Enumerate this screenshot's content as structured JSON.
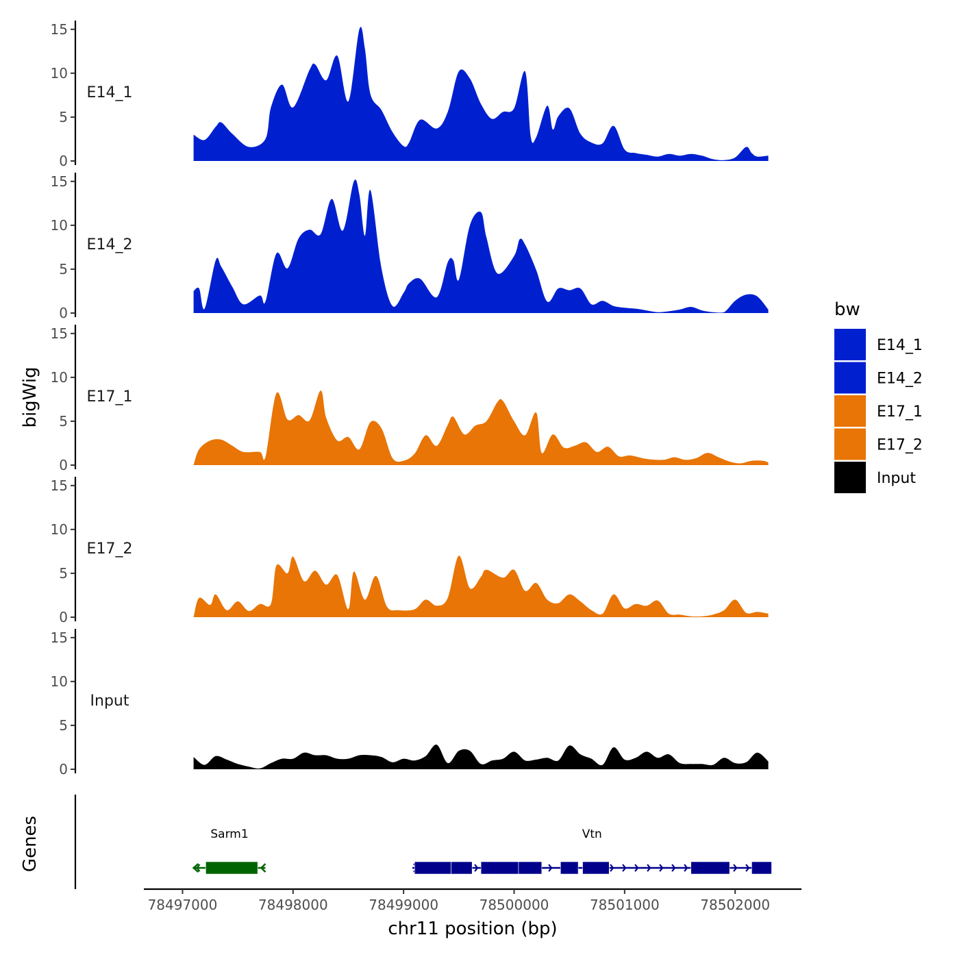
{
  "chart_data": {
    "type": "area",
    "x_axis": {
      "label": "chr11 position (bp)",
      "range": [
        78496650,
        78502600
      ],
      "ticks": [
        78497000,
        78498000,
        78499000,
        78500000,
        78501000,
        78502000
      ],
      "tick_labels": [
        "78497000",
        "78498000",
        "78499000",
        "78500000",
        "78501000",
        "78502000"
      ]
    },
    "y_axis": {
      "label": "bigWig",
      "range": [
        0,
        16
      ],
      "ticks": [
        0,
        5,
        10,
        15
      ],
      "tick_labels": [
        "0",
        "5",
        "10",
        "15"
      ]
    },
    "genes_label": "Genes",
    "colors": {
      "E14": "#0020D0",
      "E17": "#E87505",
      "Input": "#000000",
      "gene_minus": "#006400",
      "gene_plus": "#00008B"
    },
    "series": [
      {
        "name": "E14_1",
        "label": "E14_1",
        "color": "#0020D0",
        "x": [
          78497100,
          78497200,
          78497300,
          78497350,
          78497450,
          78497600,
          78497750,
          78497800,
          78497900,
          78498000,
          78498150,
          78498200,
          78498300,
          78498400,
          78498500,
          78498600,
          78498650,
          78498700,
          78498800,
          78498900,
          78499000,
          78499050,
          78499150,
          78499300,
          78499400,
          78499500,
          78499600,
          78499700,
          78499800,
          78499900,
          78500000,
          78500100,
          78500150,
          78500200,
          78500300,
          78500350,
          78500400,
          78500500,
          78500600,
          78500700,
          78500800,
          78500900,
          78501000,
          78501100,
          78501200,
          78501300,
          78501400,
          78501500,
          78501600,
          78501700,
          78501800,
          78501900,
          78502000,
          78502100,
          78502150,
          78502200,
          78502300
        ],
        "y": [
          3.0,
          2.4,
          3.9,
          4.4,
          3.1,
          1.6,
          2.5,
          6.1,
          8.7,
          6.1,
          10.4,
          11.0,
          9.2,
          12.0,
          6.8,
          15.0,
          12.8,
          7.6,
          5.8,
          3.3,
          1.7,
          2.1,
          4.7,
          3.7,
          5.6,
          10.2,
          9.4,
          6.5,
          4.8,
          5.6,
          6.0,
          10.2,
          2.8,
          2.7,
          6.3,
          3.6,
          5.1,
          6.0,
          3.1,
          2.1,
          2.0,
          4.0,
          1.3,
          0.9,
          0.7,
          0.5,
          0.8,
          0.6,
          0.8,
          0.6,
          0.2,
          0.1,
          0.4,
          1.6,
          0.9,
          0.5,
          0.6
        ]
      },
      {
        "name": "E14_2",
        "label": "E14_2",
        "color": "#0020D0",
        "x": [
          78497100,
          78497150,
          78497200,
          78497300,
          78497350,
          78497450,
          78497550,
          78497700,
          78497750,
          78497850,
          78497950,
          78498050,
          78498150,
          78498250,
          78498350,
          78498450,
          78498550,
          78498600,
          78498650,
          78498700,
          78498800,
          78498900,
          78499000,
          78499050,
          78499150,
          78499300,
          78499400,
          78499450,
          78499500,
          78499600,
          78499700,
          78499750,
          78499850,
          78500000,
          78500050,
          78500100,
          78500200,
          78500300,
          78500400,
          78500500,
          78500600,
          78500700,
          78500800,
          78500900,
          78501000,
          78501100,
          78501200,
          78501300,
          78501400,
          78501500,
          78501600,
          78501700,
          78501800,
          78501900,
          78502000,
          78502100,
          78502200,
          78502300
        ],
        "y": [
          2.5,
          2.8,
          0.5,
          6.0,
          5.3,
          3.0,
          1.0,
          2.0,
          1.3,
          6.8,
          5.1,
          8.5,
          9.5,
          9.0,
          13.0,
          9.4,
          15.0,
          13.5,
          8.8,
          14.0,
          5.1,
          0.8,
          2.3,
          3.4,
          3.9,
          1.8,
          5.8,
          6.0,
          3.8,
          10.0,
          11.5,
          8.6,
          4.5,
          6.5,
          8.4,
          7.8,
          4.9,
          1.3,
          2.8,
          2.6,
          2.8,
          1.0,
          1.4,
          0.8,
          0.6,
          0.5,
          0.3,
          0.1,
          0.2,
          0.4,
          0.7,
          0.3,
          0.1,
          0.1,
          1.4,
          2.1,
          1.9,
          0.4
        ]
      },
      {
        "name": "E17_1",
        "label": "E17_1",
        "color": "#E87505",
        "x": [
          78497100,
          78497150,
          78497250,
          78497350,
          78497450,
          78497550,
          78497700,
          78497750,
          78497850,
          78497950,
          78498050,
          78498150,
          78498250,
          78498300,
          78498400,
          78498500,
          78498600,
          78498700,
          78498800,
          78498900,
          78499000,
          78499100,
          78499200,
          78499300,
          78499400,
          78499450,
          78499550,
          78499650,
          78499750,
          78499850,
          78499900,
          78500000,
          78500100,
          78500200,
          78500250,
          78500350,
          78500450,
          78500550,
          78500650,
          78500750,
          78500850,
          78500950,
          78501050,
          78501200,
          78501350,
          78501450,
          78501550,
          78501650,
          78501750,
          78501850,
          78501950,
          78502050,
          78502150,
          78502250,
          78502300
        ],
        "y": [
          0.0,
          1.8,
          2.8,
          2.9,
          2.2,
          1.5,
          1.5,
          0.9,
          8.2,
          5.2,
          5.7,
          5.1,
          8.5,
          5.4,
          2.8,
          3.2,
          1.8,
          4.9,
          4.2,
          0.8,
          0.5,
          1.3,
          3.4,
          2.2,
          4.6,
          5.5,
          3.5,
          4.5,
          5.0,
          7.2,
          7.3,
          5.0,
          3.4,
          6.0,
          1.4,
          3.5,
          2.0,
          2.2,
          2.6,
          1.5,
          2.1,
          1.0,
          1.1,
          0.7,
          0.6,
          0.9,
          0.6,
          0.8,
          1.4,
          0.9,
          0.4,
          0.2,
          0.5,
          0.5,
          0.3
        ]
      },
      {
        "name": "E17_2",
        "label": "E17_2",
        "color": "#E87505",
        "x": [
          78497100,
          78497150,
          78497250,
          78497300,
          78497400,
          78497500,
          78497600,
          78497700,
          78497800,
          78497850,
          78497950,
          78498000,
          78498100,
          78498200,
          78498300,
          78498400,
          78498500,
          78498550,
          78498650,
          78498750,
          78498850,
          78498950,
          78499100,
          78499200,
          78499300,
          78499400,
          78499500,
          78499600,
          78499700,
          78499750,
          78499900,
          78500000,
          78500100,
          78500200,
          78500300,
          78500400,
          78500500,
          78500600,
          78500700,
          78500800,
          78500900,
          78501000,
          78501100,
          78501200,
          78501300,
          78501400,
          78501500,
          78501600,
          78501700,
          78501800,
          78501900,
          78502000,
          78502100,
          78502200,
          78502300
        ],
        "y": [
          0.0,
          2.2,
          1.4,
          2.6,
          0.8,
          1.8,
          0.7,
          1.5,
          1.5,
          5.9,
          5.0,
          6.9,
          4.1,
          5.3,
          3.7,
          4.8,
          0.9,
          5.2,
          2.0,
          4.7,
          1.2,
          0.8,
          0.9,
          2.0,
          1.3,
          2.2,
          7.0,
          3.3,
          4.6,
          5.4,
          4.5,
          5.4,
          3.0,
          3.9,
          2.0,
          1.6,
          2.6,
          1.8,
          0.8,
          0.4,
          2.6,
          1.0,
          1.5,
          1.3,
          1.9,
          0.4,
          0.3,
          0.1,
          0.1,
          0.3,
          0.8,
          2.0,
          0.5,
          0.6,
          0.4
        ]
      },
      {
        "name": "Input",
        "label": "Input",
        "color": "#000000",
        "x": [
          78497100,
          78497200,
          78497300,
          78497400,
          78497500,
          78497600,
          78497700,
          78497800,
          78497900,
          78498000,
          78498100,
          78498200,
          78498300,
          78498400,
          78498500,
          78498600,
          78498700,
          78498800,
          78498900,
          78499000,
          78499100,
          78499200,
          78499300,
          78499400,
          78499500,
          78499600,
          78499700,
          78499800,
          78499900,
          78500000,
          78500100,
          78500200,
          78500300,
          78500400,
          78500500,
          78500600,
          78500700,
          78500800,
          78500900,
          78501000,
          78501100,
          78501200,
          78501300,
          78501400,
          78501500,
          78501600,
          78501700,
          78501800,
          78501900,
          78502000,
          78502100,
          78502200,
          78502300
        ],
        "y": [
          1.4,
          0.5,
          1.5,
          1.1,
          0.6,
          0.3,
          0.1,
          0.7,
          1.2,
          1.2,
          1.9,
          1.6,
          1.6,
          1.2,
          1.2,
          1.6,
          1.6,
          1.4,
          0.8,
          1.2,
          1.0,
          1.5,
          2.8,
          0.7,
          2.1,
          2.1,
          0.6,
          1.0,
          1.2,
          2.0,
          1.0,
          1.1,
          1.3,
          1.0,
          2.7,
          1.7,
          1.2,
          0.5,
          2.5,
          1.1,
          1.3,
          2.0,
          1.3,
          1.7,
          0.7,
          0.6,
          0.6,
          0.5,
          1.3,
          0.7,
          0.8,
          1.9,
          0.9
        ]
      }
    ],
    "genes": [
      {
        "name": "Sarm1",
        "label": "Sarm1",
        "strand": "-",
        "color": "#006400",
        "start": 78497100,
        "end": 78497750,
        "blocks": [
          [
            78497210,
            78497680
          ]
        ]
      },
      {
        "name": "Vtn",
        "label": "Vtn",
        "strand": "+",
        "color": "#00008B",
        "start": 78499080,
        "end": 78502330,
        "blocks": [
          [
            78499100,
            78499430
          ],
          [
            78499430,
            78499620
          ],
          [
            78499700,
            78500040
          ],
          [
            78500040,
            78500250
          ],
          [
            78500420,
            78500580
          ],
          [
            78500620,
            78500860
          ],
          [
            78501600,
            78501950
          ],
          [
            78502150,
            78502330
          ]
        ]
      }
    ],
    "legend": {
      "title": "bw",
      "position": "right",
      "entries": [
        {
          "label": "E14_1",
          "color": "#0020D0"
        },
        {
          "label": "E14_2",
          "color": "#0020D0"
        },
        {
          "label": "E17_1",
          "color": "#E87505"
        },
        {
          "label": "E17_2",
          "color": "#E87505"
        },
        {
          "label": "Input",
          "color": "#000000"
        }
      ]
    }
  }
}
